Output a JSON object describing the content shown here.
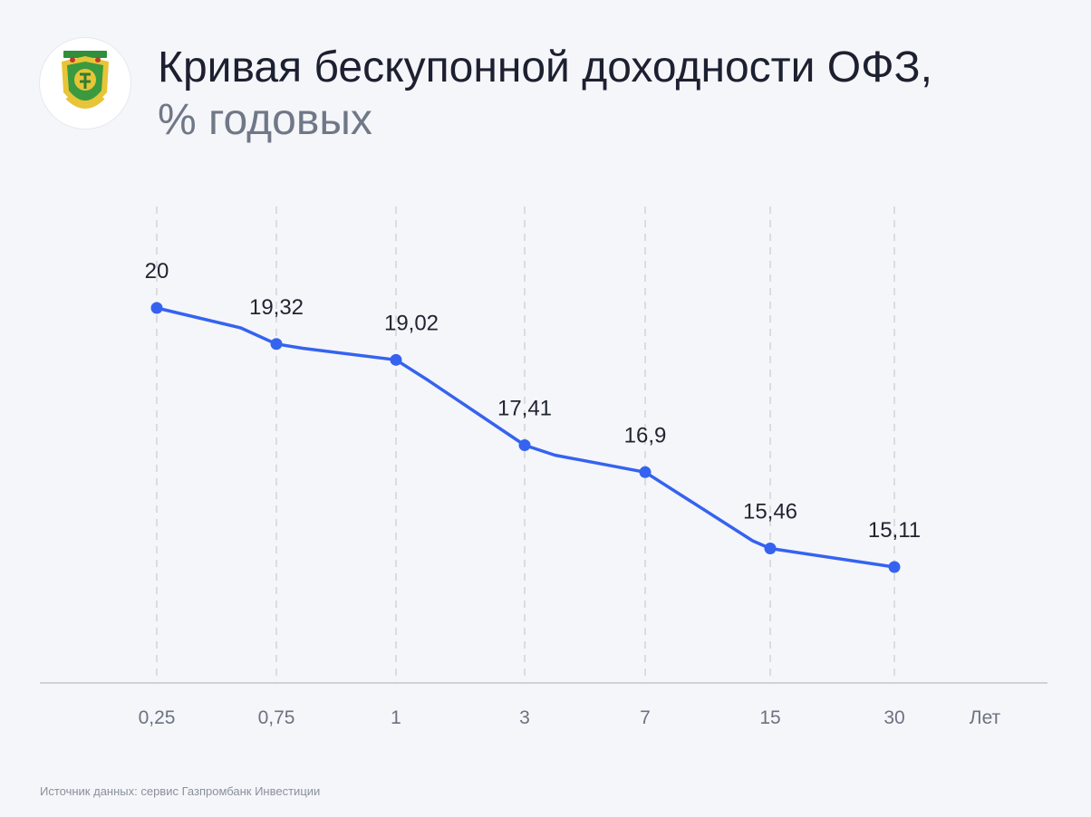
{
  "header": {
    "title_main": "Кривая бескупонной доходности ОФЗ,",
    "title_unit": "% годовых"
  },
  "colors": {
    "line": "#3563f0",
    "grid": "#c9cbd2",
    "axis": "#c4c6cc"
  },
  "logo": {
    "icon": "russian-finance-ministry-emblem-icon"
  },
  "chart_data": {
    "type": "line",
    "title": "Кривая бескупонной доходности ОФЗ, % годовых",
    "xlabel": "Лет",
    "ylabel": "",
    "categories": [
      "0,25",
      "0,75",
      "1",
      "3",
      "7",
      "15",
      "30"
    ],
    "values": [
      20,
      19.32,
      19.02,
      17.41,
      16.9,
      15.46,
      15.11
    ],
    "data_labels": [
      "20",
      "19,32",
      "19,02",
      "17,41",
      "16,9",
      "15,46",
      "15,11"
    ],
    "ylim": [
      12.5,
      21.5
    ],
    "grid": "vertical dashed",
    "legend": "none"
  },
  "footer": {
    "source": "Источник данных: сервис Газпромбанк Инвестиции"
  }
}
